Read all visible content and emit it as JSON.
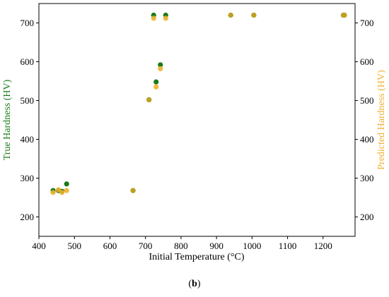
{
  "caption": {
    "open": "(",
    "letter": "b",
    "close": ")"
  },
  "colors": {
    "true_series": "#1a7a1a",
    "predicted_series": "#f0b030",
    "overlap": "#c0a020"
  },
  "chart_data": {
    "type": "scatter",
    "xlabel": "Initial Temperature (°C)",
    "ylabel_left": "True Hardness (HV)",
    "ylabel_right": "Predicted Hardness (HV)",
    "xlim": [
      400,
      1290
    ],
    "ylim": [
      150,
      750
    ],
    "xticks": [
      400,
      500,
      600,
      700,
      800,
      900,
      1000,
      1100,
      1200
    ],
    "yticks": [
      200,
      300,
      400,
      500,
      600,
      700
    ],
    "grid": false,
    "series": [
      {
        "name": "True Hardness (HV)",
        "color": "#1a7a1a",
        "x": [
          440,
          455,
          465,
          478,
          665,
          710,
          723,
          730,
          742,
          757,
          940,
          1005,
          1257,
          1260
        ],
        "y": [
          268,
          268,
          266,
          285,
          268,
          502,
          720,
          548,
          592,
          720,
          720,
          720,
          720,
          720
        ]
      },
      {
        "name": "Predicted Hardness (HV)",
        "color": "#f0b030",
        "x": [
          440,
          455,
          465,
          478,
          665,
          710,
          723,
          730,
          742,
          757,
          940,
          1005,
          1257,
          1260
        ],
        "y": [
          263,
          270,
          263,
          268,
          268,
          502,
          712,
          535,
          582,
          712,
          720,
          720,
          720,
          720
        ]
      }
    ]
  }
}
